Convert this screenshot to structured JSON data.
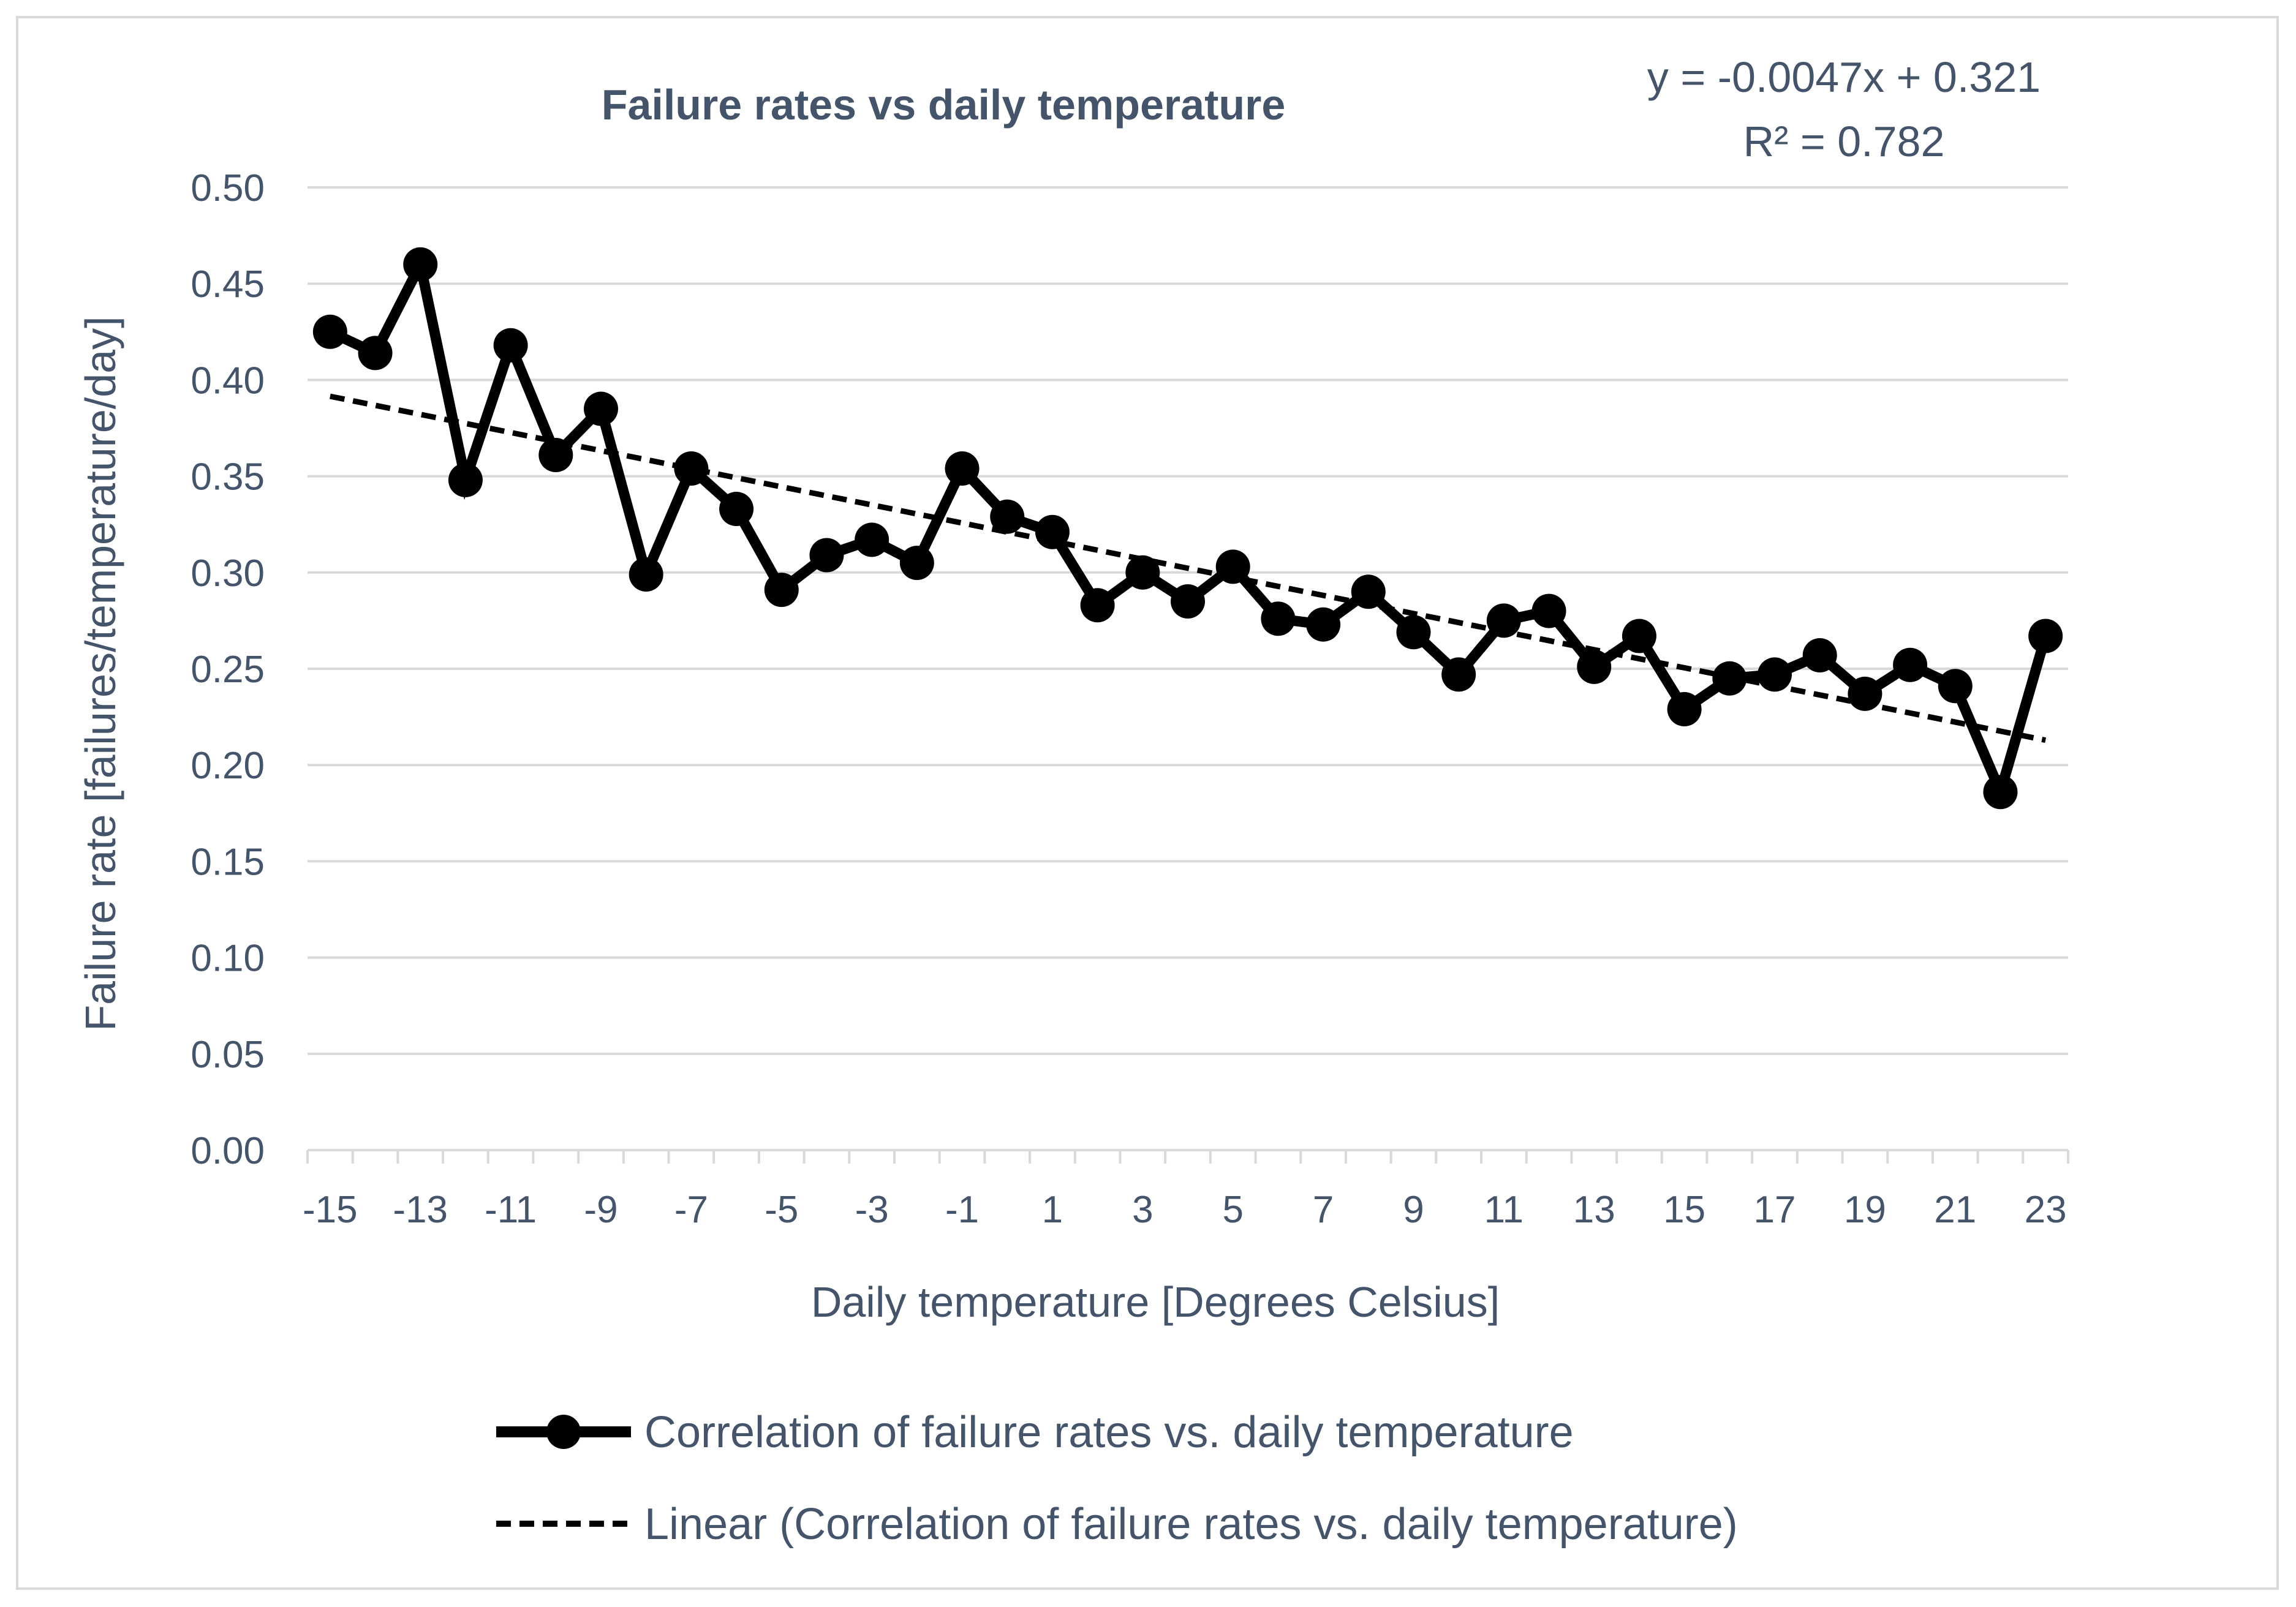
{
  "chart_data": {
    "type": "line",
    "title": "Failure rates vs daily temperature",
    "xlabel": "Daily temperature [Degrees Celsius]",
    "ylabel": "Failure rate [failures/temperature/day]",
    "x": [
      -15,
      -14,
      -13,
      -12,
      -11,
      -10,
      -9,
      -8,
      -7,
      -6,
      -5,
      -4,
      -3,
      -2,
      -1,
      0,
      1,
      2,
      3,
      4,
      5,
      6,
      7,
      8,
      9,
      10,
      11,
      12,
      13,
      14,
      15,
      16,
      17,
      18,
      19,
      20,
      21,
      22,
      23
    ],
    "x_tick_labels": [
      "-15",
      "-13",
      "-11",
      "-9",
      "-7",
      "-5",
      "-3",
      "-1",
      "1",
      "3",
      "5",
      "7",
      "9",
      "11",
      "13",
      "15",
      "17",
      "19",
      "21",
      "23"
    ],
    "y_tick_labels": [
      "0.00",
      "0.05",
      "0.10",
      "0.15",
      "0.20",
      "0.25",
      "0.30",
      "0.35",
      "0.40",
      "0.45",
      "0.50"
    ],
    "ylim": [
      0,
      0.5
    ],
    "xlim": [
      -15,
      23
    ],
    "grid": true,
    "legend_position": "bottom",
    "series": [
      {
        "name": "Correlation of failure rates vs. daily temperature",
        "style": "solid-with-markers",
        "color": "#000000",
        "values": [
          0.425,
          0.414,
          0.46,
          0.348,
          0.418,
          0.361,
          0.385,
          0.299,
          0.354,
          0.333,
          0.291,
          0.309,
          0.317,
          0.305,
          0.354,
          0.329,
          0.321,
          0.283,
          0.3,
          0.285,
          0.303,
          0.276,
          0.273,
          0.29,
          0.269,
          0.247,
          0.275,
          0.28,
          0.251,
          0.267,
          0.229,
          0.245,
          0.247,
          0.257,
          0.237,
          0.252,
          0.241,
          0.186,
          0.267
        ]
      },
      {
        "name": "Linear (Correlation of failure rates vs. daily temperature)",
        "style": "dashed",
        "color": "#000000",
        "trendline": {
          "slope": -0.0047,
          "intercept": 0.321
        }
      }
    ],
    "annotations": {
      "equation": "y = -0.0047x + 0.321",
      "r_squared": "R² = 0.782"
    },
    "colors": {
      "grid": "#d9d9d9",
      "text": "#44546a",
      "frame": "#d9d9d9"
    }
  }
}
